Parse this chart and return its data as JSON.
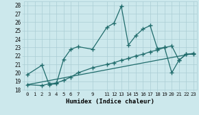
{
  "xlabel": "Humidex (Indice chaleur)",
  "bg_color": "#cce8ec",
  "grid_color": "#aacdd4",
  "line_color": "#1f6b6b",
  "xlim": [
    -0.5,
    23.5
  ],
  "ylim": [
    18,
    28.5
  ],
  "xticks": [
    0,
    1,
    2,
    3,
    4,
    5,
    6,
    7,
    9,
    11,
    12,
    13,
    14,
    15,
    16,
    17,
    18,
    19,
    20,
    21,
    22,
    23
  ],
  "yticks": [
    18,
    19,
    20,
    21,
    22,
    23,
    24,
    25,
    26,
    27,
    28
  ],
  "series1_x": [
    0,
    2,
    3,
    4,
    5,
    6,
    7,
    9,
    11,
    12,
    13,
    14,
    15,
    16,
    17,
    18,
    19,
    20,
    21,
    22,
    23
  ],
  "series1_y": [
    19.8,
    20.9,
    18.6,
    18.7,
    21.6,
    22.8,
    23.1,
    22.8,
    25.4,
    25.9,
    27.9,
    23.3,
    24.4,
    25.2,
    25.6,
    22.9,
    23.0,
    20.0,
    21.5,
    22.2,
    22.2
  ],
  "series2_x": [
    0,
    2,
    3,
    4,
    5,
    6,
    7,
    9,
    11,
    12,
    13,
    14,
    15,
    16,
    17,
    18,
    19,
    20,
    21,
    22,
    23
  ],
  "series2_y": [
    18.6,
    18.5,
    18.7,
    18.8,
    19.1,
    19.5,
    20.0,
    20.6,
    21.0,
    21.2,
    21.5,
    21.7,
    22.0,
    22.2,
    22.5,
    22.7,
    23.0,
    23.2,
    21.5,
    22.2,
    22.3
  ],
  "series3_x": [
    0,
    23
  ],
  "series3_y": [
    18.6,
    22.3
  ],
  "markersize": 4,
  "linewidth": 0.9
}
